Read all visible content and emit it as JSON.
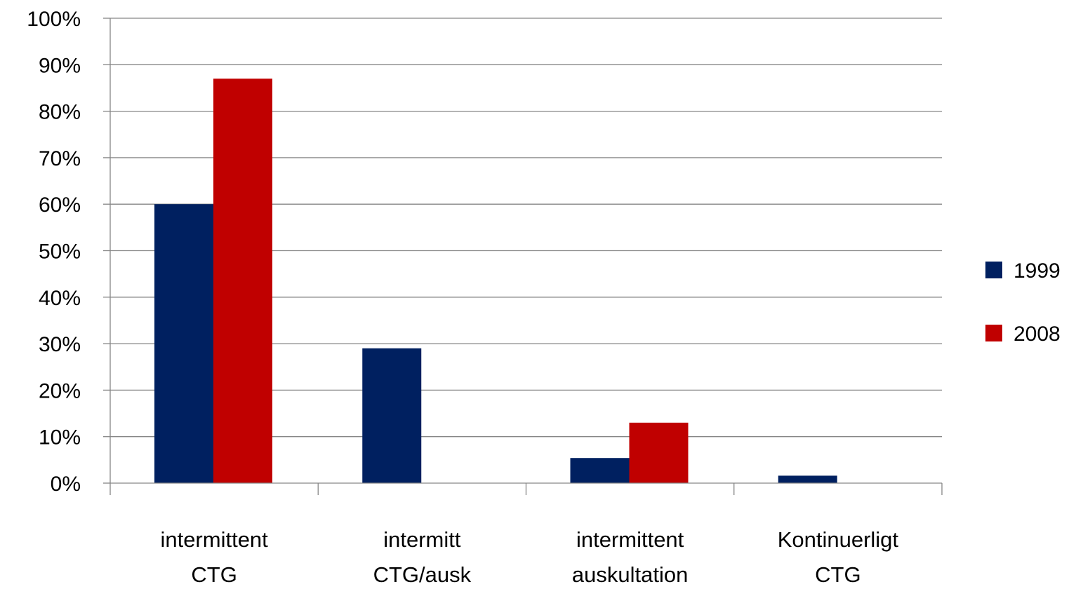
{
  "chart_data": {
    "type": "bar",
    "categories": [
      [
        "intermittent",
        "CTG"
      ],
      [
        "intermitt",
        "CTG/ausk"
      ],
      [
        "intermittent",
        "auskultation"
      ],
      [
        "Kontinuerligt",
        "CTG"
      ]
    ],
    "series": [
      {
        "name": "1999",
        "color": "#002060",
        "values": [
          60,
          29,
          5.4,
          1.6
        ]
      },
      {
        "name": "2008",
        "color": "#C00000",
        "values": [
          87,
          0,
          13,
          0
        ]
      }
    ],
    "ylim": [
      0,
      100
    ],
    "yticks": [
      0,
      10,
      20,
      30,
      40,
      50,
      60,
      70,
      80,
      90,
      100
    ],
    "ytick_format": "{v}%",
    "grid": true,
    "legend_position": "right",
    "title": "",
    "xlabel": "",
    "ylabel": ""
  }
}
